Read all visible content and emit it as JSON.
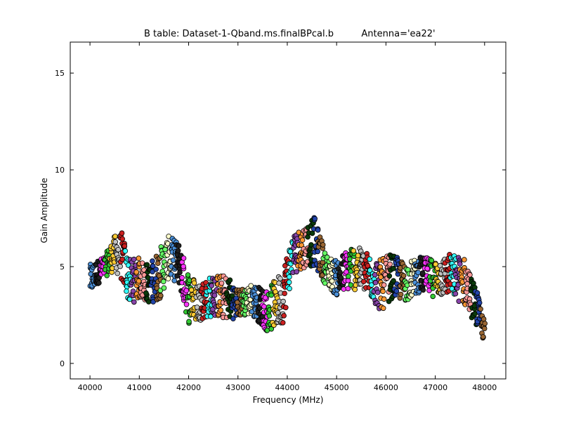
{
  "chart_data": {
    "type": "scatter",
    "title": "B table: Dataset-1-Qband.ms.finalBPcal.b",
    "subtitle": "Antenna='ea22'",
    "xlabel": "Frequency (MHz)",
    "ylabel": "Gain Amplitude",
    "xlim": [
      39600,
      48430
    ],
    "ylim": [
      -0.8,
      16.6
    ],
    "xticks": [
      40000,
      41000,
      42000,
      43000,
      44000,
      45000,
      46000,
      47000,
      48000
    ],
    "yticks": [
      0,
      5,
      10,
      15
    ],
    "grid": false,
    "legend": "none",
    "marker": "circle",
    "marker_edge_color": "#000000",
    "series_colors": [
      "#4a8fd8",
      "#202020",
      "#ff33ff",
      "#33cc33",
      "#ffcc33",
      "#c0c0c0",
      "#cc2020",
      "#33ffff",
      "#8844aa",
      "#ff9933",
      "#ff9999",
      "#0a3a0a",
      "#2244aa",
      "#996633",
      "#66ff66",
      "#ffffcc"
    ],
    "series_summary": [
      {
        "x": 40000,
        "y": 4.3,
        "spread": 0.9
      },
      {
        "x": 40150,
        "y": 4.7,
        "spread": 0.7
      },
      {
        "x": 40300,
        "y": 5.0,
        "spread": 0.6
      },
      {
        "x": 40500,
        "y": 5.7,
        "spread": 1.0
      },
      {
        "x": 40650,
        "y": 5.5,
        "spread": 1.4
      },
      {
        "x": 40800,
        "y": 4.2,
        "spread": 1.3
      },
      {
        "x": 41000,
        "y": 4.4,
        "spread": 1.2
      },
      {
        "x": 41200,
        "y": 4.1,
        "spread": 1.1
      },
      {
        "x": 41400,
        "y": 4.6,
        "spread": 1.5
      },
      {
        "x": 41600,
        "y": 5.5,
        "spread": 1.2
      },
      {
        "x": 41800,
        "y": 5.2,
        "spread": 1.2
      },
      {
        "x": 42000,
        "y": 3.4,
        "spread": 1.5
      },
      {
        "x": 42200,
        "y": 3.2,
        "spread": 1.1
      },
      {
        "x": 42500,
        "y": 3.5,
        "spread": 1.2
      },
      {
        "x": 42800,
        "y": 3.4,
        "spread": 1.3
      },
      {
        "x": 43000,
        "y": 3.1,
        "spread": 0.8
      },
      {
        "x": 43300,
        "y": 3.3,
        "spread": 0.9
      },
      {
        "x": 43600,
        "y": 2.7,
        "spread": 1.2
      },
      {
        "x": 43900,
        "y": 3.4,
        "spread": 1.6
      },
      {
        "x": 44100,
        "y": 5.6,
        "spread": 1.2
      },
      {
        "x": 44300,
        "y": 6.0,
        "spread": 1.2
      },
      {
        "x": 44550,
        "y": 6.3,
        "spread": 1.4
      },
      {
        "x": 44800,
        "y": 4.8,
        "spread": 0.9
      },
      {
        "x": 45000,
        "y": 4.4,
        "spread": 1.0
      },
      {
        "x": 45300,
        "y": 5.0,
        "spread": 1.3
      },
      {
        "x": 45600,
        "y": 4.7,
        "spread": 1.2
      },
      {
        "x": 45900,
        "y": 4.0,
        "spread": 1.5
      },
      {
        "x": 46100,
        "y": 4.5,
        "spread": 1.3
      },
      {
        "x": 46400,
        "y": 4.2,
        "spread": 1.1
      },
      {
        "x": 46700,
        "y": 4.6,
        "spread": 1.0
      },
      {
        "x": 47000,
        "y": 4.4,
        "spread": 1.1
      },
      {
        "x": 47300,
        "y": 4.6,
        "spread": 1.2
      },
      {
        "x": 47600,
        "y": 4.2,
        "spread": 1.4
      },
      {
        "x": 47850,
        "y": 2.8,
        "spread": 1.0
      },
      {
        "x": 48000,
        "y": 1.6,
        "spread": 0.6
      }
    ]
  }
}
